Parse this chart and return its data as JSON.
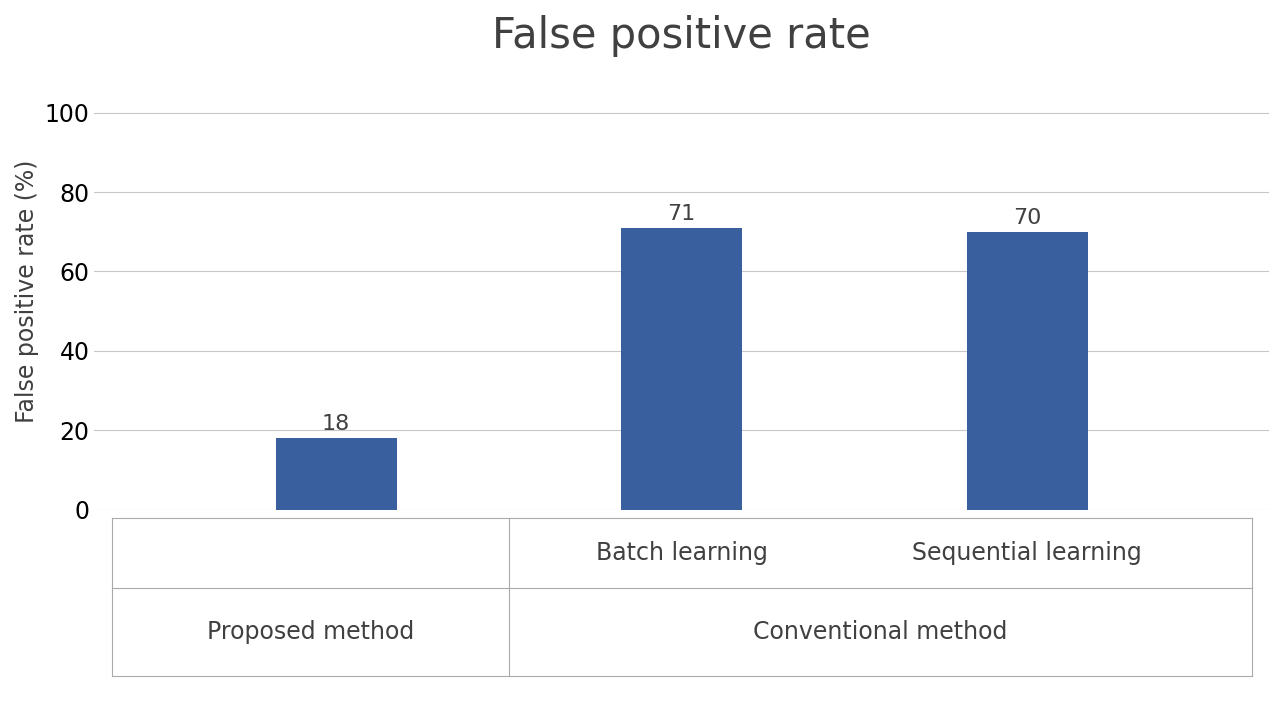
{
  "title": "False positive rate",
  "ylabel": "False positive rate (%)",
  "bars": [
    {
      "label": "",
      "value": 18,
      "group": "Proposed method"
    },
    {
      "label": "Batch learning",
      "value": 71,
      "group": "Conventional method"
    },
    {
      "label": "Sequential learning",
      "value": 70,
      "group": "Conventional method"
    }
  ],
  "bar_color": "#3A5F9F",
  "ylim": [
    0,
    110
  ],
  "yticks": [
    0,
    20,
    40,
    60,
    80,
    100
  ],
  "grid_color": "#c8c8c8",
  "background_color": "#ffffff",
  "title_fontsize": 30,
  "label_fontsize": 17,
  "tick_fontsize": 17,
  "value_fontsize": 16,
  "group_label_fontsize": 17,
  "sublabel_fontsize": 17,
  "bar_width": 0.35,
  "text_color": "#404040",
  "spine_color": "#aaaaaa",
  "box_line_color": "#aaaaaa"
}
